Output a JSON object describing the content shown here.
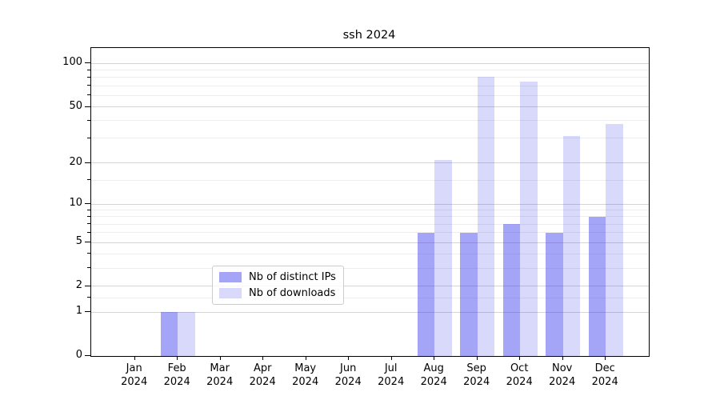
{
  "title": "ssh 2024",
  "chart_data": {
    "type": "bar",
    "title": "ssh 2024",
    "scale": "log1p",
    "categories": [
      "Jan",
      "Feb",
      "Mar",
      "Apr",
      "May",
      "Jun",
      "Jul",
      "Aug",
      "Sep",
      "Oct",
      "Nov",
      "Dec"
    ],
    "x_year_line": "2024",
    "series": [
      {
        "name": "Nb of distinct IPs",
        "color": "#4040f0",
        "alpha": 0.47,
        "values": [
          0,
          1,
          0,
          0,
          0,
          0,
          0,
          6,
          6,
          7,
          6,
          8
        ]
      },
      {
        "name": "Nb of downloads",
        "color": "#4040f0",
        "alpha": 0.2,
        "values": [
          0,
          1,
          0,
          0,
          0,
          0,
          0,
          21,
          81,
          75,
          31,
          38
        ]
      }
    ],
    "y_major_ticks": [
      0,
      1,
      2,
      5,
      10,
      20,
      50,
      100
    ],
    "y_minor_ticks": [
      1.5,
      3,
      4,
      6,
      7,
      8,
      9,
      15,
      30,
      40,
      60,
      70,
      80,
      90
    ],
    "ylim": [
      0,
      128
    ],
    "xlabel": "",
    "ylabel": "",
    "grid": "horizontal",
    "legend_position": "lower center"
  }
}
